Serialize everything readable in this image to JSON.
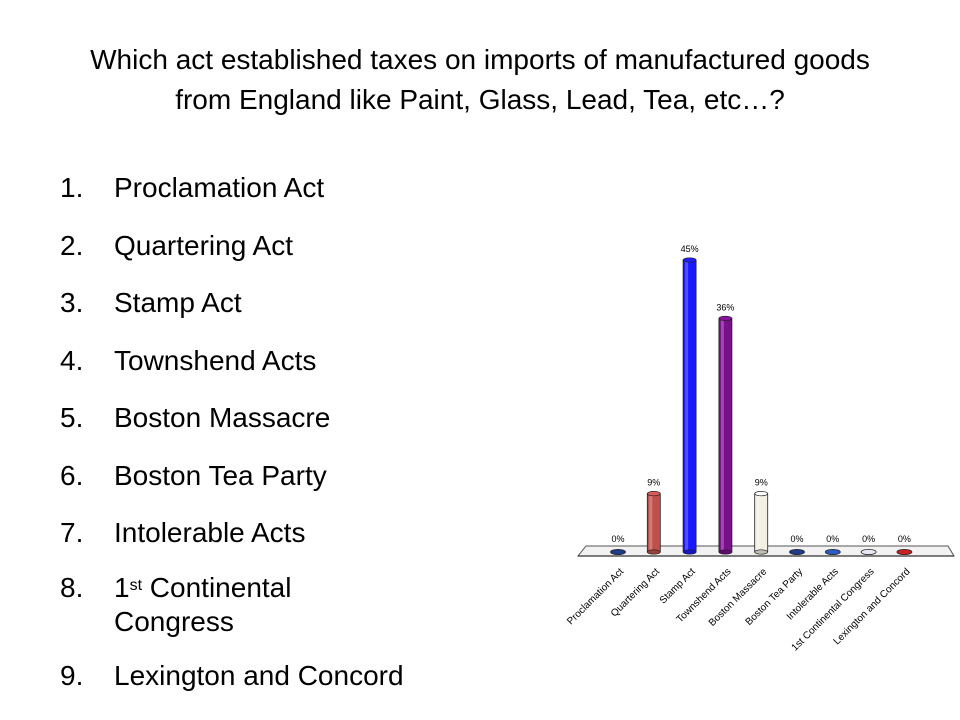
{
  "slide": {
    "question": "Which act established taxes on imports of manufactured goods from England like Paint, Glass, Lead, Tea, etc…?"
  },
  "answers": [
    {
      "num": "1.",
      "text": "Proclamation Act"
    },
    {
      "num": "2.",
      "text": "Quartering Act"
    },
    {
      "num": "3.",
      "text": "Stamp Act"
    },
    {
      "num": "4.",
      "text": "Townshend Acts"
    },
    {
      "num": "5.",
      "text": "Boston Massacre"
    },
    {
      "num": "6.",
      "text": "Boston Tea Party"
    },
    {
      "num": "7.",
      "text": "Intolerable Acts"
    },
    {
      "num": "8.",
      "pre": "1",
      "sup": "st",
      "post": " Continental",
      "line2": "Congress"
    },
    {
      "num": "9.",
      "text": "Lexington and Concord"
    }
  ],
  "chart_data": {
    "type": "bar",
    "categories": [
      "Proclamation Act",
      "Quartering Act",
      "Stamp Act",
      "Townshend Acts",
      "Boston Massacre",
      "Boston Tea Party",
      "Intolerable Acts",
      "1st Continental Congress",
      "Lexington and Concord"
    ],
    "values": [
      0,
      9,
      45,
      36,
      9,
      0,
      0,
      0,
      0
    ],
    "data_labels": [
      "0%",
      "9%",
      "45%",
      "36%",
      "9%",
      "0%",
      "0%",
      "0%",
      "0%"
    ],
    "colors": [
      "#1f3c8c",
      "#c0504d",
      "#1a1aff",
      "#7a0f8c",
      "#f3efe3",
      "#1f3c8c",
      "#2c5cc5",
      "#e8e8f4",
      "#cc2020"
    ],
    "ylim": [
      0,
      45
    ],
    "grid": false,
    "legend": "none",
    "style": "3d-cylinder"
  }
}
